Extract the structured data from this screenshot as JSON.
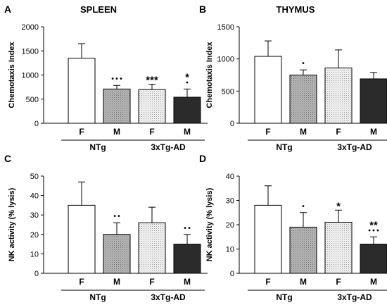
{
  "fill_patterns": {
    "F": "#ffffff",
    "M_NTg": "gray-dotted",
    "F_3xTg": "light-dotted",
    "M_3xTg": "#2b2b2b"
  },
  "chart_data": [
    {
      "type": "bar",
      "panel": "A",
      "title": "SPLEEN",
      "ylabel": "Chemotaxis Index",
      "ylim": [
        0,
        2000
      ],
      "yticks": [
        0,
        500,
        1000,
        1500,
        2000
      ],
      "categories": [
        "F",
        "M",
        "F",
        "M"
      ],
      "groups": [
        {
          "label": "NTg"
        },
        {
          "label": "3xTg-AD"
        }
      ],
      "values": [
        1350,
        710,
        700,
        540
      ],
      "errors": [
        300,
        75,
        110,
        170
      ],
      "annotations": [
        "",
        "•••",
        "***",
        "*\n•"
      ]
    },
    {
      "type": "bar",
      "panel": "B",
      "title": "THYMUS",
      "ylabel": "Chemotaxis Index",
      "ylim": [
        0,
        1500
      ],
      "yticks": [
        0,
        500,
        1000,
        1500
      ],
      "categories": [
        "F",
        "M",
        "F",
        "M"
      ],
      "groups": [
        {
          "label": "NTg"
        },
        {
          "label": "3xTg-AD"
        }
      ],
      "values": [
        1040,
        750,
        860,
        690
      ],
      "errors": [
        240,
        80,
        280,
        100
      ],
      "annotations": [
        "",
        "•",
        "",
        ""
      ]
    },
    {
      "type": "bar",
      "panel": "C",
      "title": "",
      "ylabel": "NK activity (% lysis)",
      "ylim": [
        0,
        50
      ],
      "yticks": [
        0,
        10,
        20,
        30,
        40,
        50
      ],
      "categories": [
        "F",
        "M",
        "F",
        "M"
      ],
      "groups": [
        {
          "label": "NTg"
        },
        {
          "label": "3xTg-AD"
        }
      ],
      "values": [
        35,
        20,
        26,
        15
      ],
      "errors": [
        12,
        6,
        8,
        5
      ],
      "annotations": [
        "",
        "••",
        "",
        "••"
      ]
    },
    {
      "type": "bar",
      "panel": "D",
      "title": "",
      "ylabel": "NK activity (% lysis)",
      "ylim": [
        0,
        40
      ],
      "yticks": [
        0,
        10,
        20,
        30,
        40
      ],
      "categories": [
        "F",
        "M",
        "F",
        "M"
      ],
      "groups": [
        {
          "label": "NTg"
        },
        {
          "label": "3xTg-AD"
        }
      ],
      "values": [
        28,
        19,
        21,
        12
      ],
      "errors": [
        8,
        6,
        5,
        3
      ],
      "annotations": [
        "",
        "•",
        "*",
        "**\n•••"
      ]
    }
  ]
}
